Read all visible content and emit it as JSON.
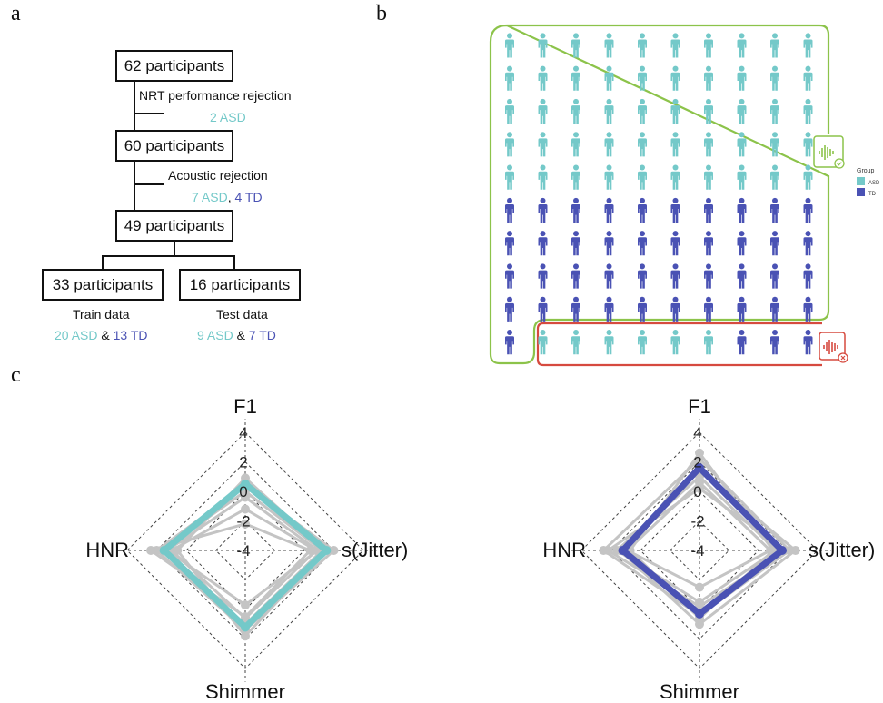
{
  "panels": {
    "a": "a",
    "b": "b",
    "c": "c"
  },
  "colors": {
    "asd": "#74c9c9",
    "td": "#4a52b4",
    "include": "#8cc34a",
    "exclude": "#d64a3f",
    "grey": "#c4c4c4"
  },
  "flow": {
    "step1": "62 participants",
    "rej1_title": "NRT performance rejection",
    "rej1_detail": "2 ASD",
    "step2": "60 participants",
    "rej2_title": "Acoustic rejection",
    "rej2_asd": "7 ASD",
    "rej2_sep": ",",
    "rej2_td": "4 TD",
    "step3": "49 participants",
    "train_box": "33 participants",
    "test_box": "16 participants",
    "train_label": "Train data",
    "test_label": "Test data",
    "train_asd": "20 ASD",
    "train_amp": "&",
    "train_td": "13 TD",
    "test_asd": "9 ASD",
    "test_amp": "&",
    "test_td": "7 TD"
  },
  "people_grid": {
    "rows": [
      [
        "ASD",
        "ASD",
        "ASD",
        "ASD",
        "ASD",
        "ASD",
        "ASD",
        "ASD",
        "ASD",
        "ASD"
      ],
      [
        "ASD",
        "ASD",
        "ASD",
        "ASD",
        "ASD",
        "ASD",
        "ASD",
        "ASD",
        "ASD",
        "ASD"
      ],
      [
        "ASD",
        "ASD",
        "ASD",
        "ASD",
        "ASD",
        "ASD",
        "ASD",
        "ASD",
        "ASD",
        "ASD"
      ],
      [
        "ASD",
        "ASD",
        "ASD",
        "ASD",
        "ASD",
        "ASD",
        "ASD",
        "ASD",
        "ASD",
        "ASD"
      ],
      [
        "ASD",
        "ASD",
        "ASD",
        "ASD",
        "ASD",
        "ASD",
        "ASD",
        "ASD",
        "ASD",
        "ASD"
      ],
      [
        "TD",
        "TD",
        "TD",
        "TD",
        "TD",
        "TD",
        "TD",
        "TD",
        "TD",
        "TD"
      ],
      [
        "TD",
        "TD",
        "TD",
        "TD",
        "TD",
        "TD",
        "TD",
        "TD",
        "TD",
        "TD"
      ],
      [
        "TD",
        "TD",
        "TD",
        "TD",
        "TD",
        "TD",
        "TD",
        "TD",
        "TD",
        "TD"
      ],
      [
        "TD",
        "TD",
        "TD",
        "TD",
        "TD",
        "TD",
        "TD",
        "TD",
        "TD",
        "TD"
      ],
      [
        "TD",
        "ASD",
        "ASD",
        "ASD",
        "ASD",
        "ASD",
        "ASD",
        "TD",
        "TD",
        "TD"
      ]
    ],
    "included_icon": "sound-wave-check-icon",
    "excluded_icon": "sound-wave-x-icon",
    "legend": {
      "title": "Group",
      "items": [
        {
          "label": "ASD",
          "color": "#74c9c9"
        },
        {
          "label": "TD",
          "color": "#4a52b4"
        }
      ]
    }
  },
  "chart_data": [
    {
      "type": "radar",
      "axes": [
        "F1",
        "s(Jitter)",
        "Shimmer",
        "HNR"
      ],
      "tick_labels": [
        "4",
        "2",
        "0",
        "-2",
        "-4"
      ],
      "range": [
        -4,
        4
      ],
      "highlight_series": {
        "name": "ASD",
        "color": "#74c9c9",
        "values": [
          0.5,
          1.5,
          1.2,
          1.5
        ]
      }
    },
    {
      "type": "radar",
      "axes": [
        "F1",
        "s(Jitter)",
        "Shimmer",
        "HNR"
      ],
      "tick_labels": [
        "4",
        "2",
        "0",
        "-2",
        "-4"
      ],
      "range": [
        -4,
        4
      ],
      "highlight_series": {
        "name": "TD",
        "color": "#4a52b4",
        "values": [
          1.6,
          1.6,
          0.3,
          1.2
        ]
      }
    }
  ]
}
